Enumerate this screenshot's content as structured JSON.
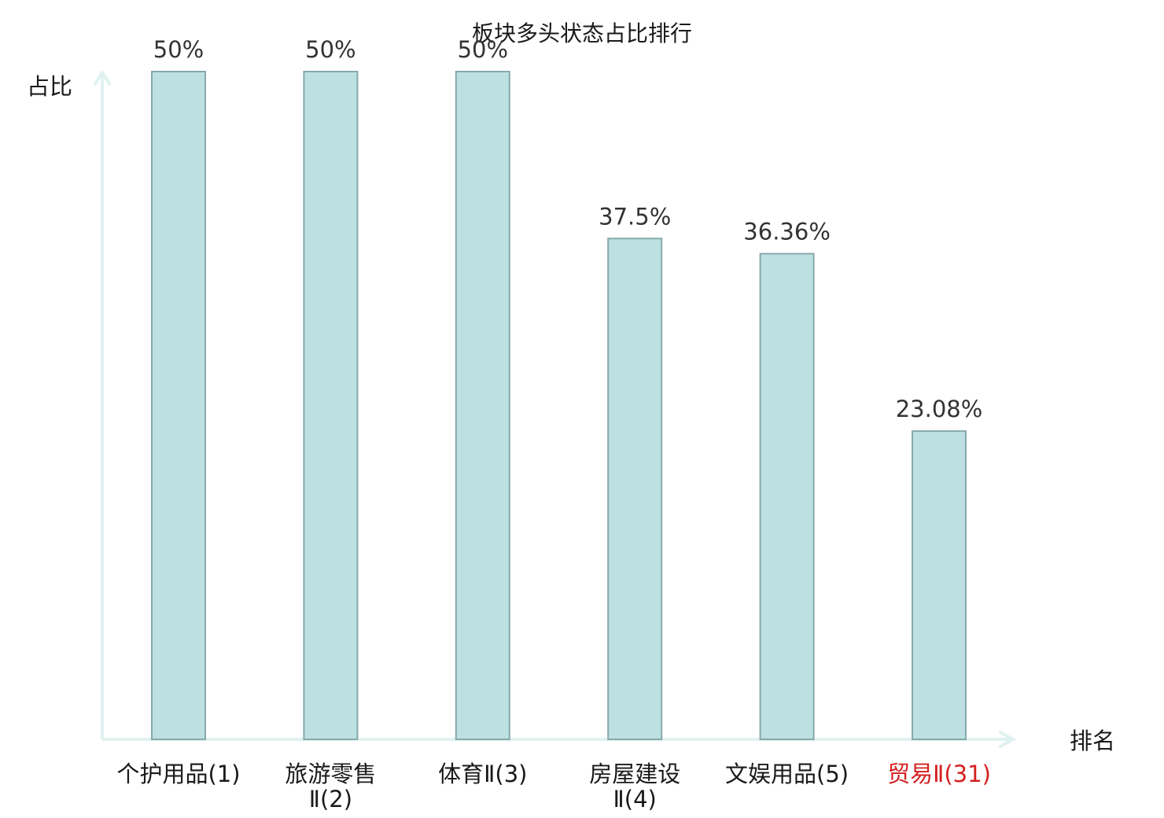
{
  "chart_data": {
    "type": "bar",
    "title": "板块多头状态占比排行",
    "xlabel": "排名",
    "ylabel": "占比",
    "categories": [
      {
        "lines": [
          "个护用品(1)"
        ],
        "highlight": false
      },
      {
        "lines": [
          "旅游零售",
          "Ⅱ(2)"
        ],
        "highlight": false
      },
      {
        "lines": [
          "体育Ⅱ(3)"
        ],
        "highlight": false
      },
      {
        "lines": [
          "房屋建设",
          "Ⅱ(4)"
        ],
        "highlight": false
      },
      {
        "lines": [
          "文娱用品(5)"
        ],
        "highlight": false
      },
      {
        "lines": [
          "贸易Ⅱ(31)"
        ],
        "highlight": true
      }
    ],
    "values": [
      50,
      50,
      50,
      37.5,
      36.36,
      23.08
    ],
    "value_labels": [
      "50%",
      "50%",
      "50%",
      "37.5%",
      "36.36%",
      "23.08%"
    ],
    "ylim": [
      0,
      50
    ],
    "grid": false,
    "colors": {
      "bar_fill": "#bde1e3",
      "bar_stroke": "#86a9ab",
      "axis": "#dff2ef",
      "highlight_text": "#d42020",
      "text": "#1a1a1a"
    }
  }
}
